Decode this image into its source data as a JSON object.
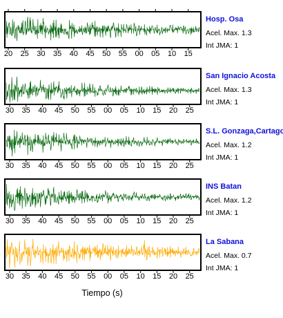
{
  "chart_data": {
    "type": "line",
    "xlabel": "Tiempo (s)",
    "colors": {
      "trace": "#0b6b12",
      "highlight": "#ffaa00",
      "station_name": "#1010dd",
      "frame": "#000000"
    },
    "stations": [
      {
        "name": "Hosp. Osa",
        "pga_label": "Acel. Max. 1.3",
        "intensity_label": "Int JMA: 1",
        "color": "#0b6b12",
        "x_ticks": [
          "20",
          "25",
          "30",
          "35",
          "40",
          "45",
          "50",
          "55",
          "00",
          "05",
          "10",
          "15"
        ],
        "tick_labels_shown": true
      },
      {
        "name": "San Ignacio Acosta",
        "pga_label": "Acel. Max. 1.3",
        "intensity_label": "Int JMA: 1",
        "color": "#0b6b12",
        "x_ticks": [
          "30",
          "35",
          "40",
          "45",
          "50",
          "55",
          "00",
          "05",
          "10",
          "15",
          "20",
          "25"
        ],
        "tick_labels_shown": true
      },
      {
        "name": "S.L. Gonzaga,Cartago",
        "pga_label": "Acel. Max. 1.2",
        "intensity_label": "Int JMA: 1",
        "color": "#0b6b12",
        "x_ticks": [
          "30",
          "35",
          "40",
          "45",
          "50",
          "55",
          "00",
          "05",
          "10",
          "15",
          "20",
          "25"
        ],
        "tick_labels_shown": true
      },
      {
        "name": "INS Batan",
        "pga_label": "Acel. Max. 1.2",
        "intensity_label": "Int JMA: 1",
        "color": "#0b6b12",
        "x_ticks": [
          "30",
          "35",
          "40",
          "45",
          "50",
          "55",
          "00",
          "05",
          "10",
          "15",
          "20",
          "25"
        ],
        "tick_labels_shown": true
      },
      {
        "name": "La Sabana",
        "pga_label": "Acel. Max. 0.7",
        "intensity_label": "Int JMA: 1",
        "color": "#ffaa00",
        "x_ticks": [
          "30",
          "35",
          "40",
          "45",
          "50",
          "55",
          "00",
          "05",
          "10",
          "15",
          "20",
          "25"
        ],
        "tick_labels_shown": true
      }
    ]
  }
}
